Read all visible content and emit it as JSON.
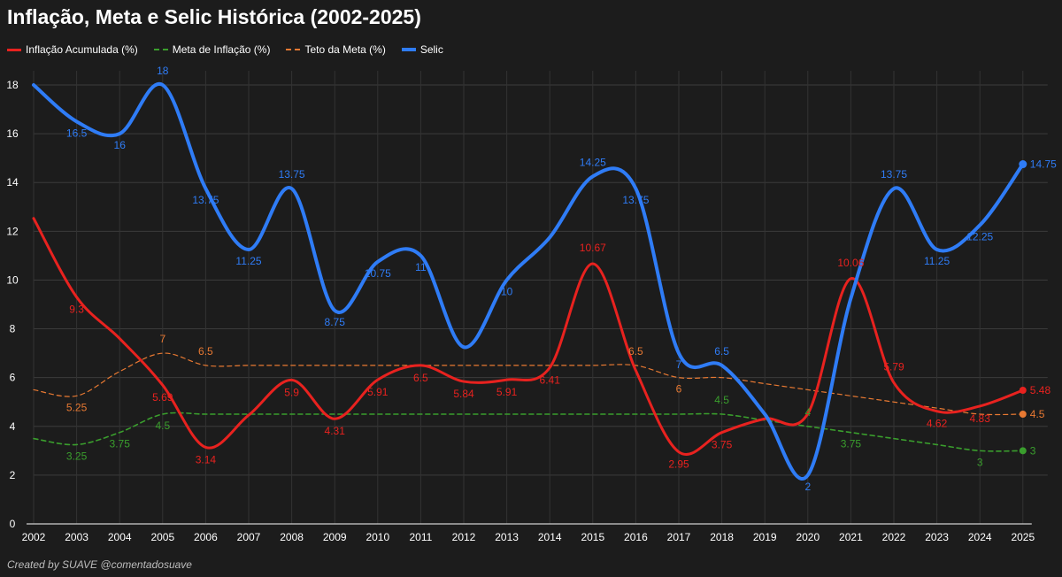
{
  "chart_data": {
    "type": "line",
    "title": "Inflação, Meta e Selic Histórica (2002-2025)",
    "xlabel": "",
    "ylabel": "",
    "ylim": [
      0,
      18
    ],
    "yticks": [
      "0",
      "2",
      "4",
      "6",
      "8",
      "10",
      "12",
      "14",
      "16",
      "18"
    ],
    "grid": true,
    "legend_position": "top-left",
    "categories": [
      "2002",
      "2003",
      "2004",
      "2005",
      "2006",
      "2007",
      "2008",
      "2009",
      "2010",
      "2011",
      "2012",
      "2013",
      "2014",
      "2015",
      "2016",
      "2017",
      "2018",
      "2019",
      "2020",
      "2021",
      "2022",
      "2023",
      "2024",
      "2025"
    ],
    "series": [
      {
        "name": "Inflação Acumulada (%)",
        "color": "#e8221f",
        "style": "solid",
        "values": [
          12.53,
          9.3,
          7.6,
          5.69,
          3.14,
          4.46,
          5.9,
          4.31,
          5.91,
          6.5,
          5.84,
          5.91,
          6.41,
          10.67,
          6.29,
          2.95,
          3.75,
          4.31,
          4.52,
          10.06,
          5.79,
          4.62,
          4.83,
          5.48
        ],
        "labels": [
          "",
          "9.3",
          "",
          "5.69",
          "3.14",
          "",
          "5.9",
          "4.31",
          "5.91",
          "6.5",
          "5.84",
          "5.91",
          "6.41",
          "10.67",
          "",
          "2.95",
          "3.75",
          "",
          "",
          "10.06",
          "5.79",
          "4.62",
          "4.83",
          "5.48"
        ]
      },
      {
        "name": "Meta de Inflação (%)",
        "color": "#3a9e2d",
        "style": "dashed",
        "values": [
          3.5,
          3.25,
          3.75,
          4.5,
          4.5,
          4.5,
          4.5,
          4.5,
          4.5,
          4.5,
          4.5,
          4.5,
          4.5,
          4.5,
          4.5,
          4.5,
          4.5,
          4.25,
          4,
          3.75,
          3.5,
          3.25,
          3,
          3
        ],
        "labels": [
          "",
          "3.25",
          "3.75",
          "4.5",
          "",
          "",
          "",
          "",
          "",
          "",
          "",
          "",
          "",
          "",
          "",
          "",
          "4.5",
          "",
          "4",
          "3.75",
          "",
          "",
          "3",
          "3"
        ]
      },
      {
        "name": "Teto da Meta (%)",
        "color": "#e87932",
        "style": "dashed",
        "values": [
          5.5,
          5.25,
          6.25,
          7,
          6.5,
          6.5,
          6.5,
          6.5,
          6.5,
          6.5,
          6.5,
          6.5,
          6.5,
          6.5,
          6.5,
          6,
          6,
          5.75,
          5.5,
          5.25,
          5,
          4.75,
          4.5,
          4.5
        ],
        "labels": [
          "",
          "5.25",
          "",
          "7",
          "6.5",
          "",
          "",
          "",
          "",
          "",
          "",
          "",
          "",
          "",
          "6.5",
          "6",
          "",
          "",
          "",
          "",
          "",
          "",
          "",
          "4.5"
        ]
      },
      {
        "name": "Selic",
        "color": "#2f7cf6",
        "style": "solid",
        "values": [
          18,
          16.5,
          16,
          18,
          13.75,
          11.25,
          13.75,
          8.75,
          10.75,
          11,
          7.25,
          10,
          11.75,
          14.25,
          13.75,
          7,
          6.5,
          4.5,
          2,
          9.25,
          13.75,
          11.25,
          12.25,
          14.75
        ],
        "labels": [
          "",
          "16.5",
          "16",
          "18",
          "13.75",
          "11.25",
          "13.75",
          "8.75",
          "10.75",
          "11",
          "",
          "10",
          "",
          "14.25",
          "13.75",
          "7",
          "6.5",
          "",
          "2",
          "",
          "13.75",
          "11.25",
          "12.25",
          "14.75"
        ]
      }
    ]
  },
  "footer": {
    "credit": "Created by SUAVE @comentadosuave"
  }
}
